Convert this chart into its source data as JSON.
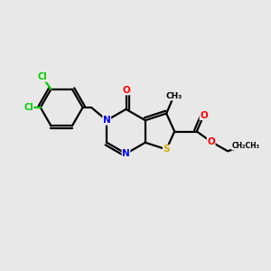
{
  "bg_color": "#e8e8e8",
  "atom_colors": {
    "C": "#000000",
    "N": "#0000ff",
    "O": "#ff0000",
    "S": "#ccaa00",
    "Cl": "#00cc00",
    "H": "#000000"
  },
  "bond_color": "#000000",
  "figure_size": [
    3.0,
    3.0
  ],
  "dpi": 100
}
